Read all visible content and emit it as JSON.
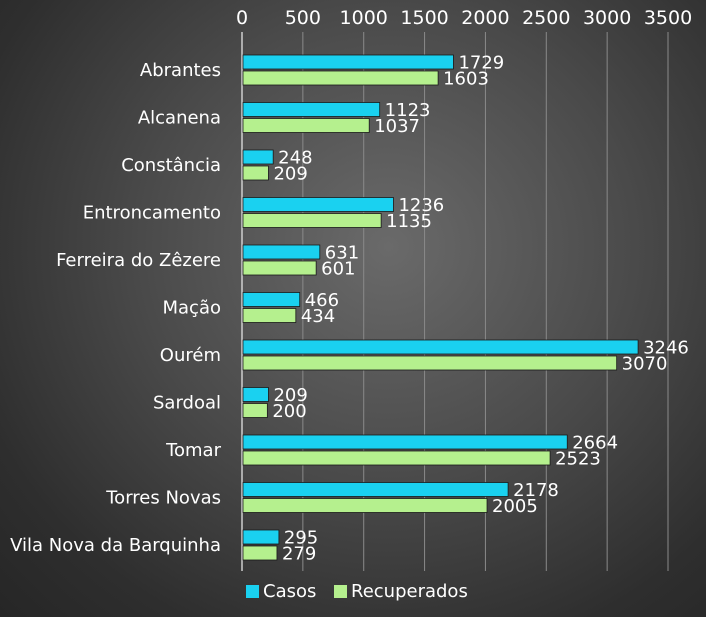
{
  "chart_data": {
    "type": "bar",
    "orientation": "horizontal",
    "categories": [
      "Abrantes",
      "Alcanena",
      "Constância",
      "Entroncamento",
      "Ferreira do Zêzere",
      "Mação",
      "Ourém",
      "Sardoal",
      "Tomar",
      "Torres Novas",
      "Vila Nova da Barquinha"
    ],
    "series": [
      {
        "name": "Casos",
        "color": "#1ad1f0",
        "values": [
          1729,
          1123,
          248,
          1236,
          631,
          466,
          3246,
          209,
          2664,
          2178,
          295
        ]
      },
      {
        "name": "Recuperados",
        "color": "#b5f08e",
        "values": [
          1603,
          1037,
          209,
          1135,
          601,
          434,
          3070,
          200,
          2523,
          2005,
          279
        ]
      }
    ],
    "xlim": [
      0,
      3500
    ],
    "x_ticks": [
      "0",
      "500",
      "1000",
      "1500",
      "2000",
      "2500",
      "3000",
      "3500"
    ],
    "x_axis_position": "top",
    "grid": true,
    "legend_position": "bottom-left",
    "data_labels": true
  }
}
